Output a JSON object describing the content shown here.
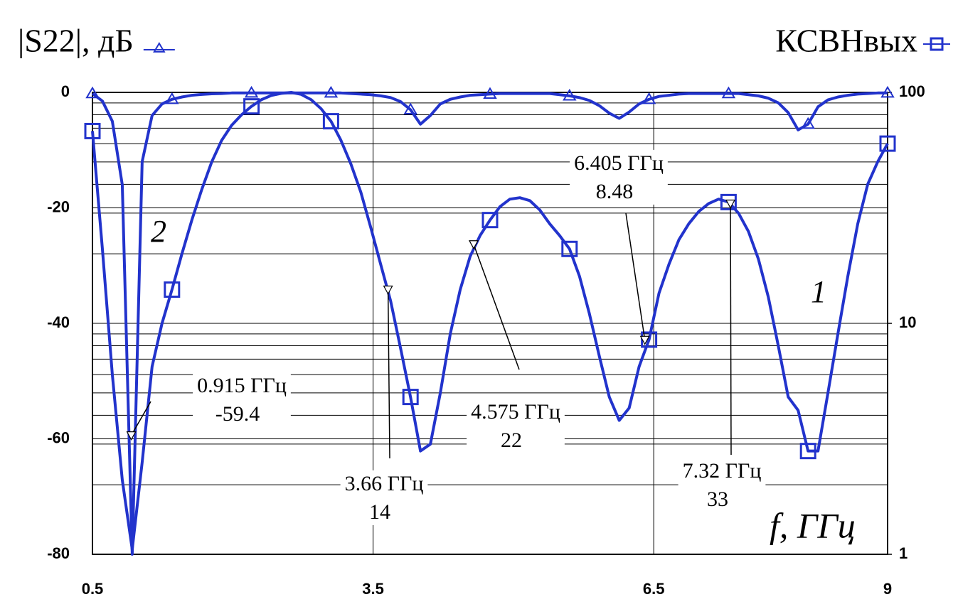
{
  "chart_data": {
    "type": "line",
    "x": [
      0.5,
      0.60625,
      0.7125,
      0.81875,
      0.925,
      1.03125,
      1.1375,
      1.24375,
      1.35,
      1.45625,
      1.5625,
      1.66875,
      1.775,
      1.88125,
      1.9875,
      2.09375,
      2.2,
      2.30625,
      2.4125,
      2.51875,
      2.625,
      2.73125,
      2.8375,
      2.94375,
      3.05,
      3.15625,
      3.2625,
      3.36875,
      3.475,
      3.58125,
      3.6875,
      3.79375,
      3.9,
      4.00625,
      4.1125,
      4.21875,
      4.325,
      4.43125,
      4.5375,
      4.64375,
      4.75,
      4.85625,
      4.9625,
      5.06875,
      5.175,
      5.28125,
      5.3875,
      5.49375,
      5.6,
      5.70625,
      5.8125,
      5.91875,
      6.025,
      6.13125,
      6.2375,
      6.34375,
      6.45,
      6.55625,
      6.6625,
      6.76875,
      6.875,
      6.98125,
      7.0875,
      7.19375,
      7.3,
      7.40625,
      7.5125,
      7.61875,
      7.725,
      7.83125,
      7.9375,
      8.04375,
      8.15,
      8.25625,
      8.3625,
      8.46875,
      8.575,
      8.68125,
      8.7875,
      8.89375,
      9.0
    ],
    "xlim": [
      0.5,
      9
    ],
    "xticks": [
      0.5,
      3.5,
      6.5,
      9
    ],
    "ylim": [
      -80,
      0
    ],
    "yticks": [
      0,
      -20,
      -40,
      -60,
      -80
    ],
    "y2lim": [
      1,
      100
    ],
    "y2ticks": [
      1,
      10,
      100
    ],
    "y2_log": true,
    "y2_minor_ticks": [
      2,
      3,
      4,
      5,
      6,
      7,
      8,
      9,
      20,
      30,
      40,
      50,
      60,
      70,
      80,
      90
    ],
    "grid": true,
    "xlabel": "f, ГГц",
    "series": [
      {
        "name": "|S22|, дБ",
        "label": "2",
        "color": "#2233cc",
        "marker": "triangle",
        "marker_every": 8,
        "values": [
          -0.2,
          -1.5,
          -5,
          -16,
          -80,
          -12,
          -4,
          -2,
          -1.2,
          -0.8,
          -0.5,
          -0.35,
          -0.25,
          -0.2,
          -0.1,
          -0.1,
          -0.1,
          -0.1,
          -0.1,
          -0.1,
          -0.1,
          -0.1,
          -0.1,
          -0.1,
          -0.1,
          -0.1,
          -0.2,
          -0.3,
          -0.4,
          -0.6,
          -0.9,
          -1.6,
          -3,
          -5.5,
          -4,
          -2,
          -1.2,
          -0.8,
          -0.5,
          -0.4,
          -0.3,
          -0.2,
          -0.2,
          -0.2,
          -0.2,
          -0.2,
          -0.2,
          -0.4,
          -0.6,
          -0.9,
          -1.4,
          -2.3,
          -3.6,
          -4.5,
          -3.4,
          -2,
          -1.2,
          -0.7,
          -0.5,
          -0.3,
          -0.2,
          -0.2,
          -0.2,
          -0.2,
          -0.2,
          -0.2,
          -0.4,
          -0.6,
          -1,
          -1.8,
          -3.5,
          -6.5,
          -5.5,
          -2.5,
          -1.3,
          -0.8,
          -0.5,
          -0.3,
          -0.2,
          -0.1,
          -0.1
        ]
      },
      {
        "name": "КСВНвых",
        "label": "1",
        "color": "#2233cc",
        "marker": "square",
        "marker_every": 8,
        "axis": "y2",
        "values": [
          68,
          21,
          6,
          2.1,
          1.05,
          2.5,
          6.5,
          10,
          14,
          20,
          28,
          38,
          50,
          62,
          72,
          80,
          87,
          93,
          97,
          99,
          100,
          98,
          93,
          85,
          75,
          62,
          49,
          37,
          26,
          18,
          12.5,
          7.8,
          4.8,
          2.8,
          3,
          5,
          9,
          14,
          19.5,
          24,
          28,
          32,
          34.5,
          35,
          34,
          31,
          27,
          24,
          21,
          16,
          11,
          7.2,
          4.8,
          3.8,
          4.3,
          6.5,
          8.5,
          13.5,
          18,
          23,
          27,
          30.5,
          33,
          34.5,
          33.5,
          30,
          25,
          19,
          13,
          8,
          4.8,
          4.2,
          2.8,
          2.8,
          5,
          9,
          16,
          27,
          40,
          50,
          60
        ]
      }
    ],
    "annotations": [
      {
        "x": 0.915,
        "text": "0.915 ГГц",
        "y": -59.4
      },
      {
        "x": 3.66,
        "text": "3.66 ГГц",
        "y": 14,
        "axis": "y2"
      },
      {
        "x": 4.575,
        "text": "4.575 ГГц",
        "y": 22,
        "axis": "y2"
      },
      {
        "x": 6.405,
        "text": "6.405 ГГц",
        "y": 8.48,
        "axis": "y2"
      },
      {
        "x": 7.32,
        "text": "7.32 ГГц",
        "y": 33,
        "axis": "y2"
      }
    ]
  }
}
